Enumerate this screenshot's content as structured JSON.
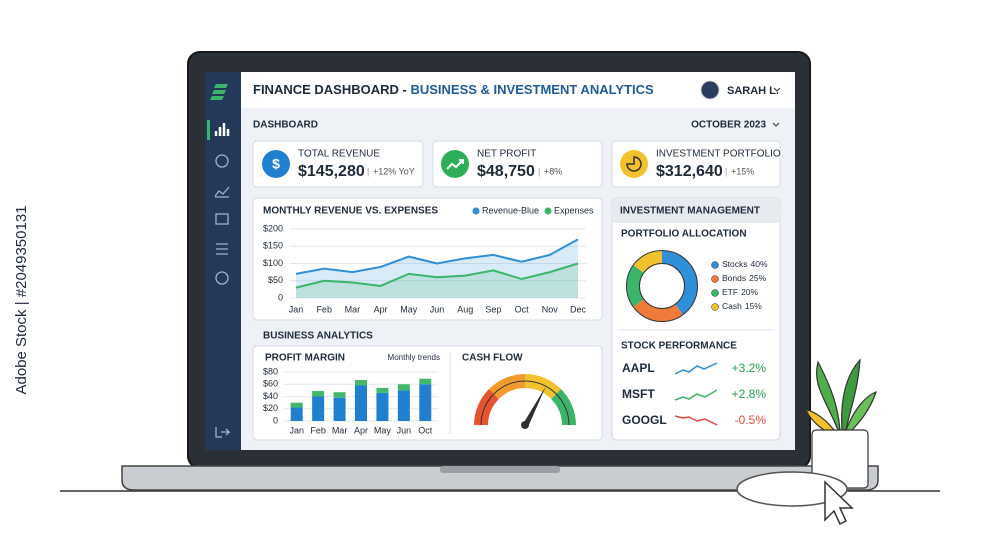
{
  "watermark": "Adobe Stock | #2049350131",
  "header": {
    "title": "FINANCE DASHBOARD - ",
    "subtitle": "BUSINESS & INVESTMENT ANALYTICS",
    "user": "SARAH L."
  },
  "toolbar": {
    "section": "DASHBOARD",
    "period": "OCTOBER 2023"
  },
  "kpis": [
    {
      "label": "TOTAL REVENUE",
      "value": "$145,280",
      "change": "+12% YoY"
    },
    {
      "label": "NET PROFIT",
      "value": "$48,750",
      "change": "+8%"
    },
    {
      "label": "INVESTMENT PORTFOLIO",
      "value": "$312,640",
      "change": "+15%"
    }
  ],
  "chart_data": [
    {
      "type": "line",
      "title": "MONTHLY REVENUE VS. EXPENSES",
      "categories": [
        "Jan",
        "Feb",
        "Mar",
        "Apr",
        "May",
        "Jun",
        "Aug",
        "Sep",
        "Oct",
        "Nov",
        "Dec"
      ],
      "series": [
        {
          "name": "Revenue-Blue",
          "color": "#2f8fd8",
          "values": [
            70,
            85,
            75,
            90,
            120,
            100,
            115,
            125,
            105,
            125,
            170
          ]
        },
        {
          "name": "Expenses",
          "color": "#3bb56a",
          "values": [
            30,
            50,
            45,
            35,
            70,
            60,
            65,
            80,
            55,
            75,
            100
          ]
        }
      ],
      "ylim": [
        0,
        200
      ],
      "yticks": [
        0,
        {
          "value": 50,
          "label": "$50"
        },
        {
          "value": 100,
          "label": "$100"
        },
        {
          "value": 150,
          "label": "$150"
        },
        {
          "value": 200,
          "label": "$200"
        }
      ],
      "grid": true
    },
    {
      "type": "bar",
      "title": "PROFIT MARGIN",
      "subtitle": "Monthly trends",
      "categories": [
        "Jan",
        "Feb",
        "Mar",
        "Apr",
        "May",
        "Jun",
        "Oct"
      ],
      "series": [
        {
          "color": "#1f7fd0",
          "values": [
            22,
            40,
            38,
            58,
            46,
            50,
            60
          ]
        },
        {
          "color": "#43b86a",
          "values": [
            8,
            9,
            9,
            9,
            8,
            10,
            9
          ]
        }
      ],
      "ylim": [
        0,
        80
      ],
      "yticks": [
        0,
        {
          "value": 20,
          "label": "$20"
        },
        {
          "value": 40,
          "label": "$40"
        },
        {
          "value": 60,
          "label": "$60"
        },
        {
          "value": 80,
          "label": "$80"
        }
      ],
      "grid": true
    },
    {
      "type": "pie",
      "title": "PORTFOLIO ALLOCATION",
      "categories": [
        "Stocks",
        "Bonds",
        "ETF",
        "Cash"
      ],
      "values": [
        40,
        25,
        20,
        15
      ],
      "value_labels": [
        "40%",
        "25%",
        "20%",
        "15%"
      ],
      "colors": [
        "#2f8fd8",
        "#f07a3a",
        "#3bb56a",
        "#f2c12e"
      ]
    }
  ],
  "sections": {
    "business": "BUSINESS ANALYTICS",
    "cash_flow": "CASH FLOW",
    "investment": "INVESTMENT MANAGEMENT",
    "stocks": "STOCK PERFORMANCE"
  },
  "stocks": [
    {
      "ticker": "AAPL",
      "change": "+3.2%"
    },
    {
      "ticker": "MSFT",
      "change": "+2.8%"
    },
    {
      "ticker": "GOOGL",
      "change": "-0.5%"
    }
  ]
}
